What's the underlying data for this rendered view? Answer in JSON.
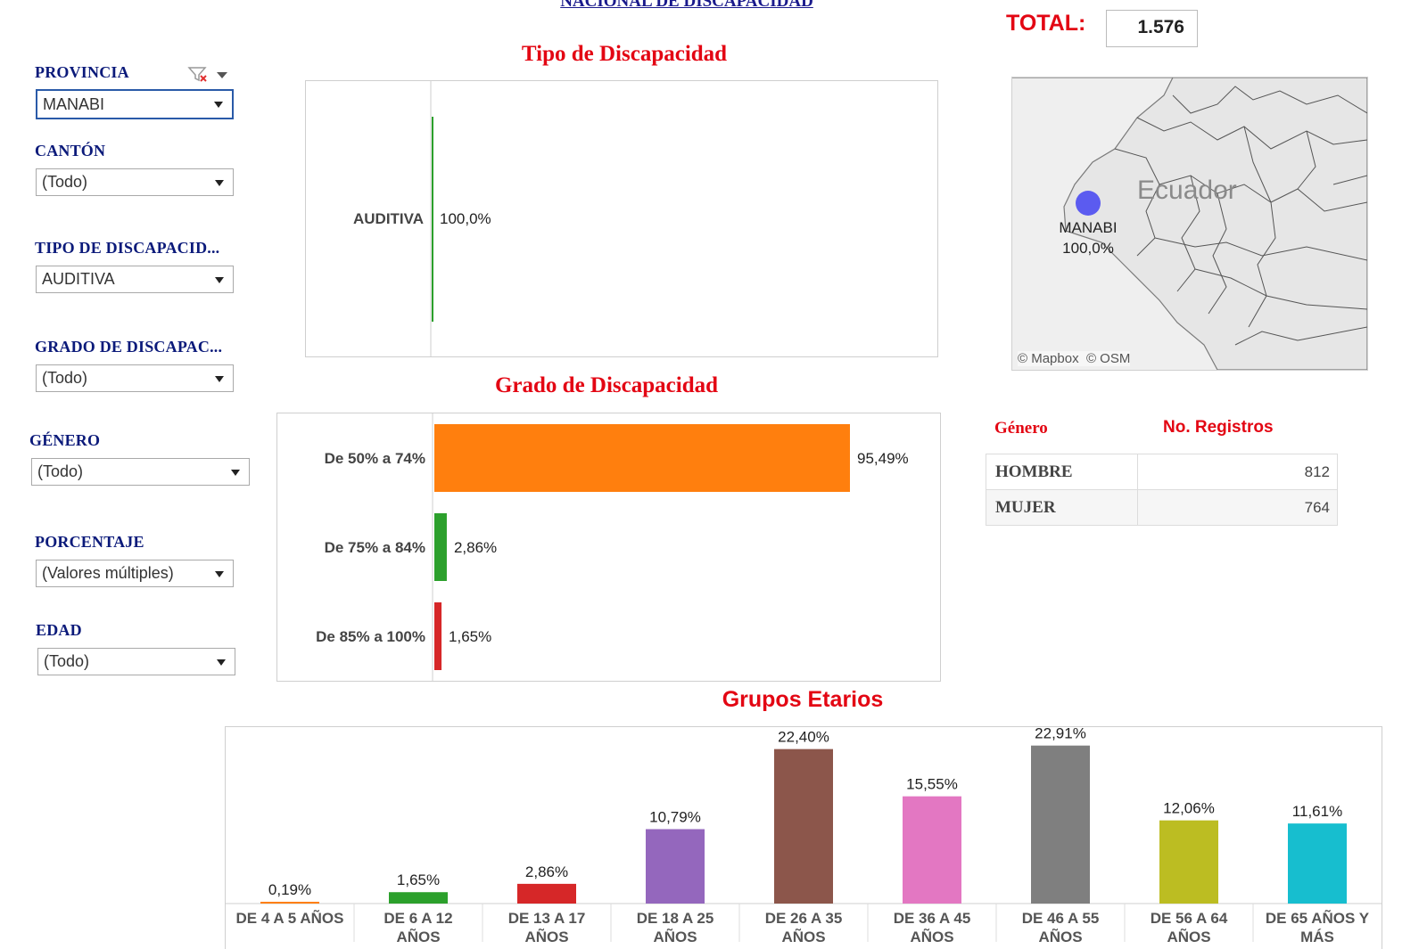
{
  "header": {
    "title": "NACIONAL DE DISCAPACIDAD",
    "total_label": "TOTAL:",
    "total_value": "1.576"
  },
  "filters": [
    {
      "label": "PROVINCIA",
      "value": "MANABI"
    },
    {
      "label": "CANTÓN",
      "value": "(Todo)"
    },
    {
      "label": "TIPO DE DISCAPACID...",
      "value": "AUDITIVA"
    },
    {
      "label": "GRADO DE DISCAPAC...",
      "value": "(Todo)"
    },
    {
      "label": "GÉNERO",
      "value": "(Todo)"
    },
    {
      "label": "PORCENTAJE",
      "value": "(Valores múltiples)"
    },
    {
      "label": "EDAD",
      "value": "(Todo)"
    }
  ],
  "map": {
    "country_label": "Ecuador",
    "point_label": "MANABI",
    "point_value": "100,0%",
    "attribution_1": "© Mapbox",
    "attribution_2": "© OSM",
    "point_color": "#5b5bf0"
  },
  "gender_table": {
    "col1": "Género",
    "col2": "No. Registros",
    "rows": [
      {
        "name": "HOMBRE",
        "value": "812"
      },
      {
        "name": "MUJER",
        "value": "764"
      }
    ]
  },
  "chart_data": [
    {
      "type": "bar",
      "orientation": "horizontal",
      "title": "Tipo de Discapacidad",
      "categories": [
        "AUDITIVA"
      ],
      "values": [
        100.0
      ],
      "value_labels": [
        "100,0%"
      ],
      "colors": [
        "#2ca02c"
      ]
    },
    {
      "type": "bar",
      "orientation": "horizontal",
      "title": "Grado de Discapacidad",
      "categories": [
        "De 50% a 74%",
        "De 75% a 84%",
        "De 85% a 100%"
      ],
      "values": [
        95.49,
        2.86,
        1.65
      ],
      "value_labels": [
        "95,49%",
        "2,86%",
        "1,65%"
      ],
      "colors": [
        "#ff7f0e",
        "#2ca02c",
        "#d62728"
      ]
    },
    {
      "type": "bar",
      "orientation": "vertical",
      "title": "Grupos Etarios",
      "categories": [
        "DE 4 A 5 AÑOS",
        "DE 6 A 12 AÑOS",
        "DE 13 A 17 AÑOS",
        "DE 18 A 25 AÑOS",
        "DE 26 A 35 AÑOS",
        "DE 36 A 45 AÑOS",
        "DE 46 A 55 AÑOS",
        "DE 56 A 64 AÑOS",
        "DE 65 AÑOS Y MÁS"
      ],
      "category_lines": [
        [
          "DE 4 A 5 AÑOS"
        ],
        [
          "DE 6 A 12",
          "AÑOS"
        ],
        [
          "DE 13 A 17",
          "AÑOS"
        ],
        [
          "DE 18 A 25",
          "AÑOS"
        ],
        [
          "DE 26 A 35",
          "AÑOS"
        ],
        [
          "DE 36 A 45",
          "AÑOS"
        ],
        [
          "DE 46 A 55",
          "AÑOS"
        ],
        [
          "DE 56 A 64",
          "AÑOS"
        ],
        [
          "DE 65 AÑOS Y",
          "MÁS"
        ]
      ],
      "values": [
        0.19,
        1.65,
        2.86,
        10.79,
        22.4,
        15.55,
        22.91,
        12.06,
        11.61
      ],
      "value_labels": [
        "0,19%",
        "1,65%",
        "2,86%",
        "10,79%",
        "22,40%",
        "15,55%",
        "22,91%",
        "12,06%",
        "11,61%"
      ],
      "colors": [
        "#ff7f0e",
        "#2ca02c",
        "#d62728",
        "#9467bd",
        "#8c564b",
        "#e377c2",
        "#7f7f7f",
        "#bcbd22",
        "#17becf"
      ]
    }
  ]
}
